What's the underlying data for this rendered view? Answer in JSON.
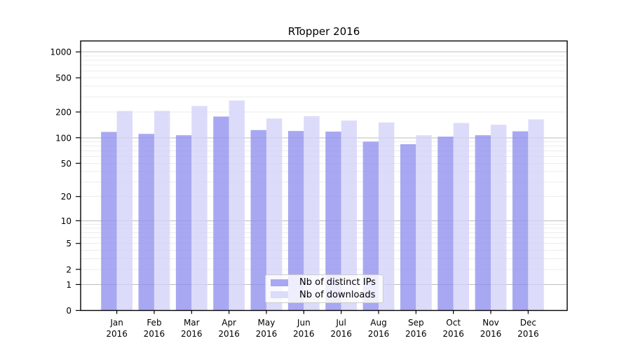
{
  "title": "RTopper 2016",
  "chart_data": {
    "type": "bar",
    "title": "RTopper 2016",
    "categories": [
      "Jan 2016",
      "Feb 2016",
      "Mar 2016",
      "Apr 2016",
      "May 2016",
      "Jun 2016",
      "Jul 2016",
      "Aug 2016",
      "Sep 2016",
      "Oct 2016",
      "Nov 2016",
      "Dec 2016"
    ],
    "series": [
      {
        "name": "Nb of distinct IPs",
        "color": "#9090ee",
        "values": [
          117,
          111,
          107,
          177,
          123,
          120,
          118,
          90,
          84,
          103,
          107,
          119
        ]
      },
      {
        "name": "Nb of downloads",
        "color": "#d2d2f8",
        "values": [
          205,
          206,
          235,
          272,
          168,
          179,
          159,
          151,
          107,
          149,
          142,
          164
        ]
      }
    ],
    "xlabel": "",
    "ylabel": "",
    "yscale": "log1p",
    "ylim": [
      0,
      1340
    ],
    "yticks": [
      1000,
      500,
      200,
      100,
      50,
      20,
      10,
      5,
      2,
      1,
      0
    ],
    "grid": true,
    "legend_position": "lower-center"
  },
  "colors": {
    "grid_major": "#bdbdbd",
    "grid_minor": "#ececec",
    "axis": "#000000",
    "legend_border": "#cccccc"
  }
}
